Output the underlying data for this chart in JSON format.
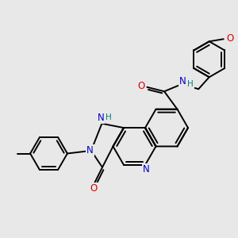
{
  "bg_color": "#e8e8e8",
  "bond_color": "#000000",
  "bond_width": 1.4,
  "atom_colors": {
    "N": "#0000cc",
    "O": "#dd0000",
    "H_N": "#008080"
  },
  "font_size": 8.5,
  "fig_width": 3.0,
  "fig_height": 3.0,
  "dpi": 100
}
